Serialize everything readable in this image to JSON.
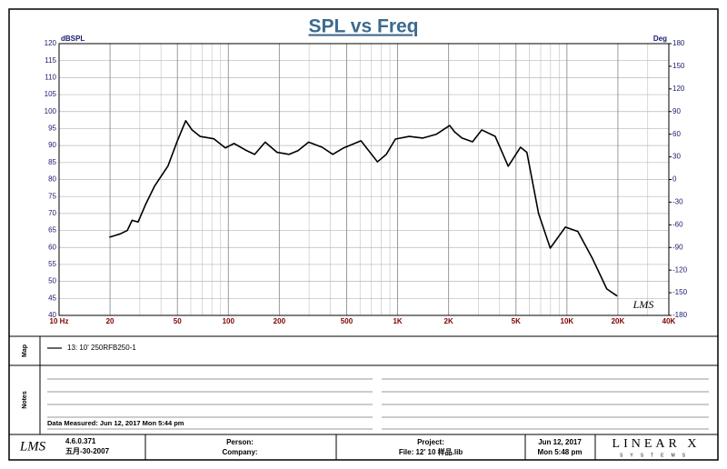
{
  "chart_data": {
    "type": "line",
    "title": "SPL vs Freq",
    "y_label": "dBSPL",
    "y2_label": "Deg",
    "annotation": "LMS",
    "log_x": true,
    "grid": true,
    "x_minor_grid": true,
    "x": [
      19.8,
      23,
      25.3,
      27,
      29.3,
      32.4,
      36.6,
      44,
      50,
      56,
      61,
      68,
      82,
      96,
      108,
      126,
      143,
      165,
      194,
      228,
      258,
      298,
      358,
      414,
      480,
      607,
      760,
      857,
      970,
      1170,
      1410,
      1690,
      2030,
      2170,
      2400,
      2770,
      3140,
      3770,
      4500,
      5320,
      5800,
      6800,
      7970,
      9800,
      11600,
      14100,
      17200,
      19800
    ],
    "series": [
      {
        "name": "13: 10' 250RFB250-1",
        "color": "#000000",
        "values": [
          63,
          64,
          65,
          68,
          67.5,
          72.6,
          78,
          84,
          91.4,
          97.3,
          94.6,
          92.7,
          92,
          89.3,
          90.6,
          88.7,
          87.4,
          91,
          88,
          87.4,
          88.5,
          91,
          89.5,
          87.4,
          89.3,
          91.4,
          85.2,
          87.4,
          91.9,
          92.7,
          92.2,
          93.3,
          95.9,
          94,
          92.2,
          91.1,
          94.6,
          92.7,
          83.9,
          89.5,
          88,
          70,
          59.8,
          66,
          64.7,
          56.9,
          47.8,
          45.7
        ]
      }
    ],
    "xlim": [
      10,
      40000
    ],
    "xticks": [
      {
        "value": 10,
        "label": "10 Hz"
      },
      20,
      50,
      100,
      200,
      500,
      {
        "value": 1000,
        "label": "1K"
      },
      {
        "value": 2000,
        "label": "2K"
      },
      {
        "value": 5000,
        "label": "5K"
      },
      {
        "value": 10000,
        "label": "10K"
      },
      {
        "value": 20000,
        "label": "20K"
      },
      {
        "value": 40000,
        "label": "40K"
      }
    ],
    "ylim": [
      40,
      120
    ],
    "yticks": [
      40,
      45,
      50,
      55,
      60,
      65,
      70,
      75,
      80,
      85,
      90,
      95,
      100,
      105,
      110,
      115,
      120
    ],
    "y2lim": [
      -180,
      180
    ],
    "y2ticks": [
      -180,
      -150,
      -120,
      -90,
      -60,
      -30,
      0,
      30,
      60,
      90,
      120,
      150,
      180
    ]
  },
  "map_label": "Map",
  "notes_label": "Notes",
  "notes_date": "Data Measured: Jun 12, 2017  Mon  5:44 pm",
  "footer": {
    "logo": "LMS",
    "version": "4.6.0.371",
    "build_date": "五月-30-2007",
    "person": "Person:",
    "company": "Company:",
    "project": "Project:",
    "file": "File: 12' 10  样品.lib",
    "date": "Jun 12, 2017",
    "time": "Mon  5:48 pm",
    "brand": "LINEAR X",
    "brand_sub": "SYSTEMS"
  }
}
